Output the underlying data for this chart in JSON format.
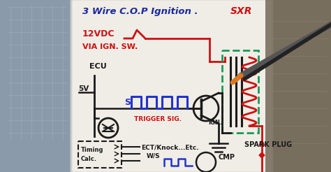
{
  "bg_left": "#7a8090",
  "bg_right": "#6a6a6a",
  "board_color": "#f0ede6",
  "title_blue": "#1a2a99",
  "title_red": "#cc1111",
  "black": "#1a1a1a",
  "green_dashed": "#1a9a5a",
  "red_wire": "#cc1111",
  "blue_signal": "#2233cc",
  "orange_brush": "#dd7722",
  "title_text": "3 Wire C.O.P Ignition .",
  "title_sub": "SXR",
  "label_12v": "12VDC",
  "label_via": "VIA IGN. SW.",
  "label_ecu": "ECU",
  "label_5v": "5V",
  "label_trigger": "TRIGGER SIG.",
  "label_s": "S",
  "label_ign": "IGN.",
  "label_timing": "Timing\nCalc.",
  "label_ect": "ECT/Knock...Etc.",
  "label_ws": "W/S",
  "label_cmp": "CMP",
  "label_spark": "SPARK PLUG"
}
